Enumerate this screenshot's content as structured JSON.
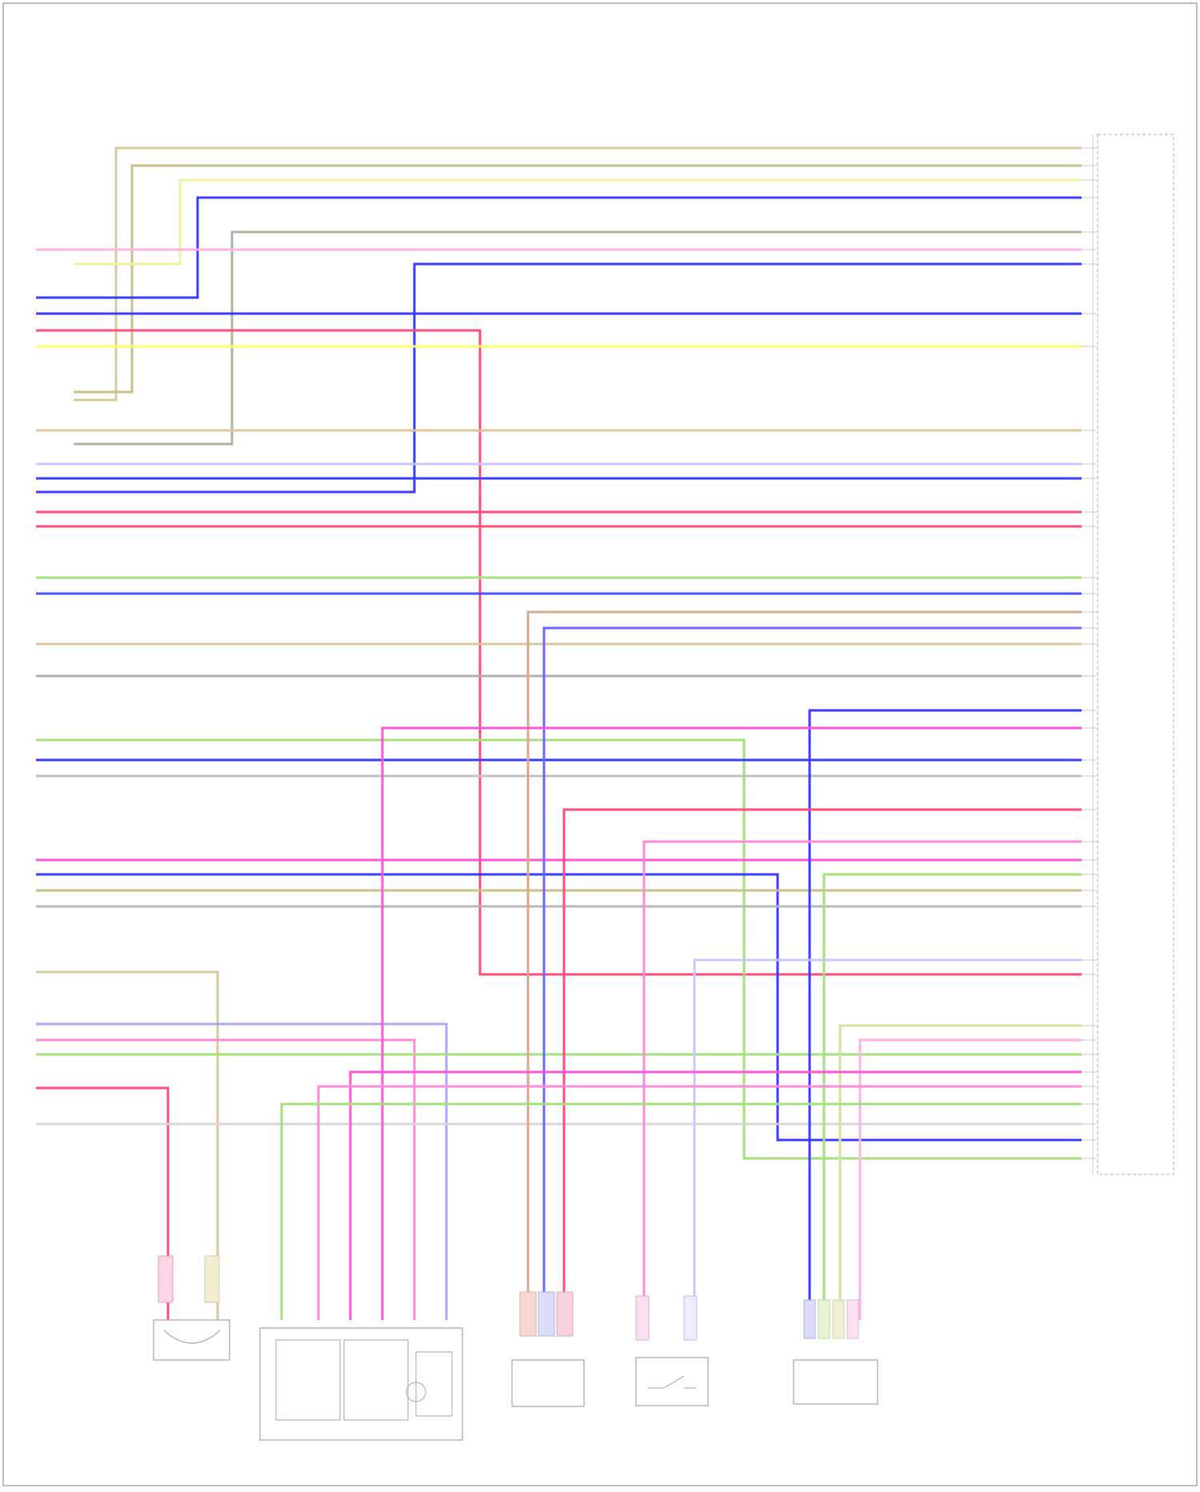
{
  "wire_colors": {
    "tan": "#d9c99a",
    "khaki": "#c9bf8a",
    "blue": "#3b3bff",
    "blue_light": "#6a6aff",
    "pink": "#ff8ad8",
    "magenta": "#ff55dd",
    "red": "#ff4d7a",
    "yellow": "#ffff66",
    "green": "#a6e07a",
    "green_dark": "#8fd45a",
    "gray": "#b0b0b0",
    "lavender": "#a8a8ff",
    "light_pink": "#ffb3e6"
  },
  "connector": {
    "title_line1": "",
    "title_line2": "",
    "title_line3": ""
  },
  "components": {
    "fuel_valve": {
      "label1": "",
      "label2": "",
      "label3": ""
    },
    "throttle": {
      "label1": "",
      "label2": ""
    },
    "sensor_a": {
      "label1": "",
      "label2": ""
    },
    "sensor_b": {
      "label1": "",
      "label2": ""
    },
    "sensor_c": {
      "label1": "",
      "label2": ""
    }
  },
  "footer_source": ""
}
